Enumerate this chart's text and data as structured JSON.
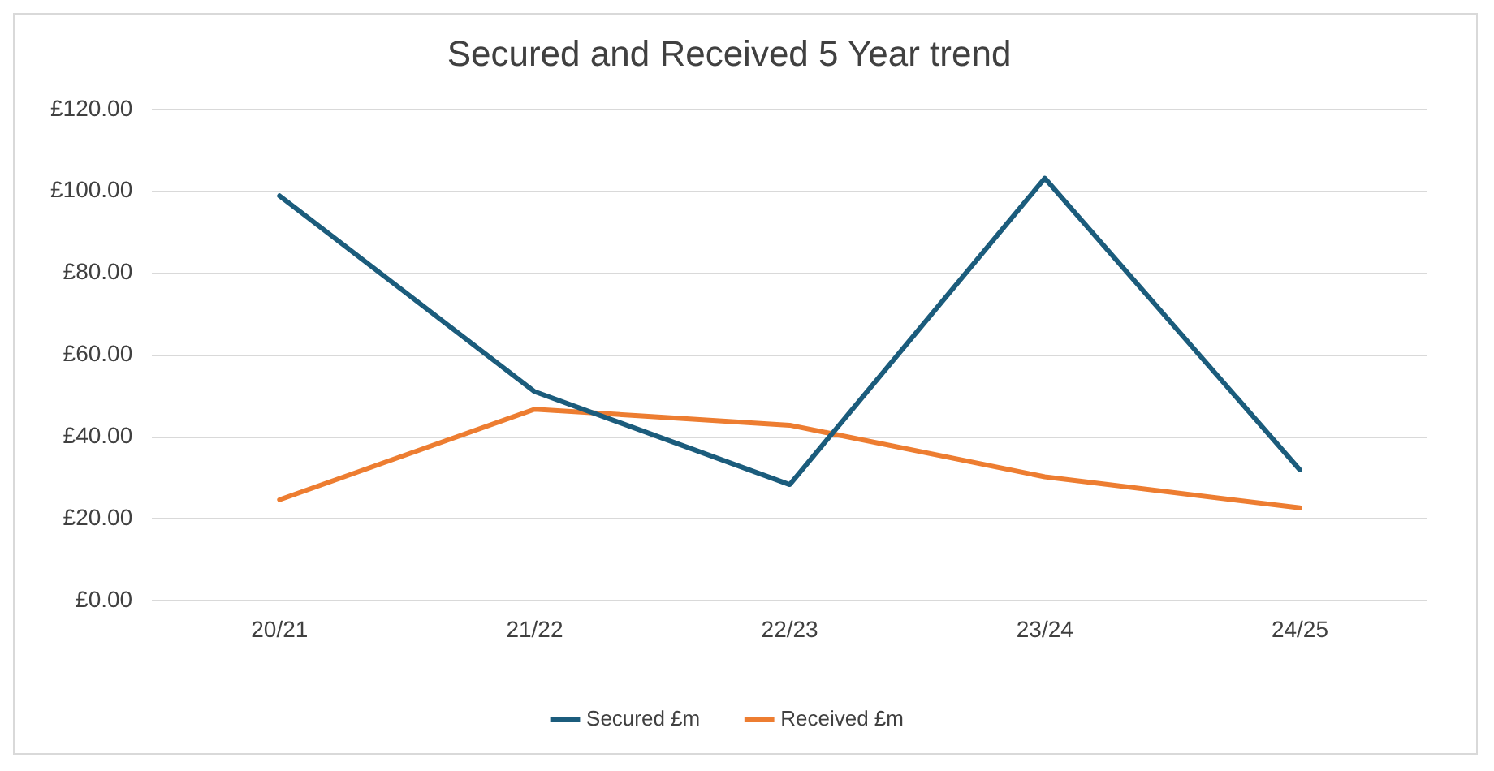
{
  "chart_data": {
    "type": "line",
    "title": "Secured and Received 5 Year trend",
    "categories": [
      "20/21",
      "21/22",
      "22/23",
      "23/24",
      "24/25"
    ],
    "series": [
      {
        "name": "Secured £m",
        "color": "#1b5c7c",
        "values": [
          98.9,
          51.1,
          28.4,
          103.2,
          32
        ]
      },
      {
        "name": "Received £m",
        "color": "#ed7d31",
        "values": [
          24.7,
          46.8,
          42.9,
          30.3,
          22.7
        ]
      }
    ],
    "ylim": [
      0,
      120
    ],
    "yticks": [
      {
        "value": 0,
        "label": "£0.00"
      },
      {
        "value": 20,
        "label": "£20.00"
      },
      {
        "value": 40,
        "label": "£40.00"
      },
      {
        "value": 60,
        "label": "£60.00"
      },
      {
        "value": 80,
        "label": "£80.00"
      },
      {
        "value": 100,
        "label": "£100.00"
      },
      {
        "value": 120,
        "label": "£120.00"
      }
    ],
    "grid": "y",
    "legend": "bottom",
    "marker": "none",
    "line_style": "solid"
  }
}
